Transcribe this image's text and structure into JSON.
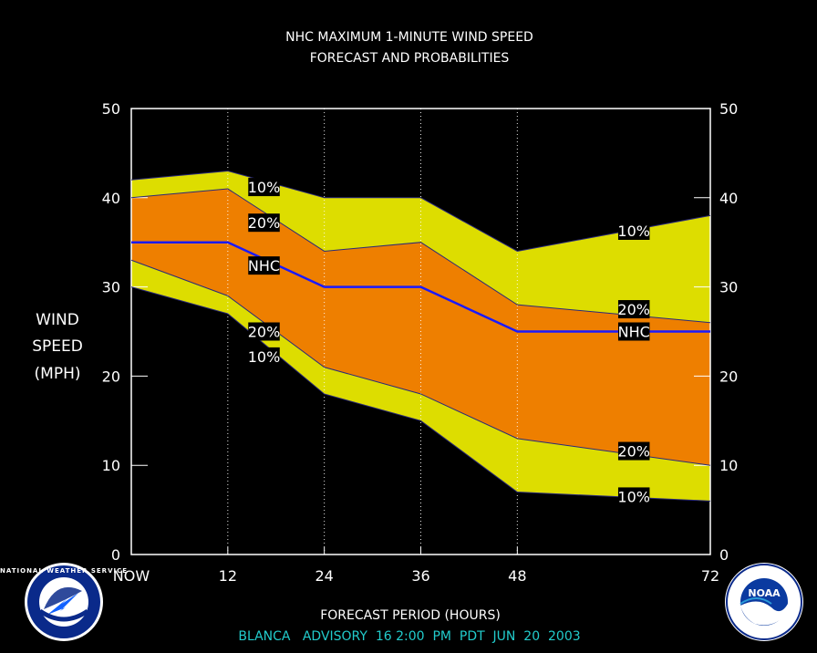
{
  "chart_data": {
    "type": "area",
    "title": "NHC MAXIMUM 1-MINUTE WIND SPEED",
    "subtitle": "FORECAST AND PROBABILITIES",
    "ylabel": [
      "WIND",
      "SPEED",
      "(MPH)"
    ],
    "xlabel": "FORECAST PERIOD (HOURS)",
    "footer": "BLANCA   ADVISORY  16 2:00  PM  PDT  JUN  20  2003",
    "ylim": [
      0,
      50
    ],
    "xlim": [
      0,
      72
    ],
    "x_ticks": [
      {
        "value": 0,
        "label": "NOW"
      },
      {
        "value": 12,
        "label": "12"
      },
      {
        "value": 24,
        "label": "24"
      },
      {
        "value": 36,
        "label": "36"
      },
      {
        "value": 48,
        "label": "48"
      },
      {
        "value": 72,
        "label": "72"
      }
    ],
    "y_ticks": [
      0,
      10,
      20,
      30,
      40,
      50
    ],
    "x": [
      0,
      12,
      24,
      36,
      48,
      72
    ],
    "series": [
      {
        "name": "10%",
        "role": "upper",
        "values": [
          42,
          43,
          40,
          40,
          34,
          38
        ]
      },
      {
        "name": "20%",
        "role": "upper",
        "values": [
          40,
          41,
          34,
          35,
          28,
          26
        ]
      },
      {
        "name": "NHC",
        "values": [
          35,
          35,
          30,
          30,
          25,
          25
        ]
      },
      {
        "name": "20%",
        "role": "lower",
        "values": [
          33,
          29,
          21,
          18,
          13,
          10
        ]
      },
      {
        "name": "10%",
        "role": "lower",
        "values": [
          30,
          27,
          18,
          15,
          7,
          6
        ]
      }
    ],
    "curve_labels": [
      {
        "text": "10%",
        "series": 0,
        "x": 16.5,
        "y": 41.2
      },
      {
        "text": "20%",
        "series": 1,
        "x": 16.5,
        "y": 37.2
      },
      {
        "text": "NHC",
        "series": 2,
        "x": 16.5,
        "y": 32.4
      },
      {
        "text": "20%",
        "series": 3,
        "x": 16.5,
        "y": 25.0
      },
      {
        "text": "10%",
        "series": 4,
        "x": 16.5,
        "y": 22.2
      },
      {
        "text": "10%",
        "series": 0,
        "x": 62.5,
        "y": 36.3
      },
      {
        "text": "20%",
        "series": 1,
        "x": 62.5,
        "y": 27.5
      },
      {
        "text": "NHC",
        "series": 2,
        "x": 62.5,
        "y": 25.0
      },
      {
        "text": "20%",
        "series": 3,
        "x": 62.5,
        "y": 11.6
      },
      {
        "text": "10%",
        "series": 4,
        "x": 62.5,
        "y": 6.5
      }
    ],
    "colors": {
      "outer_band": "#dddd00",
      "inner_band": "#ee7f00",
      "nhc_line": "#1a1aff",
      "frame": "#ffffff",
      "footer_text": "#22cccc",
      "background": "#000000"
    },
    "grid": "vertical-dotted"
  },
  "logos": {
    "left": {
      "icon": "nws-logo-icon",
      "text": "NATIONAL WEATHER SERVICE"
    },
    "right": {
      "icon": "noaa-logo-icon",
      "text": "NOAA"
    }
  }
}
